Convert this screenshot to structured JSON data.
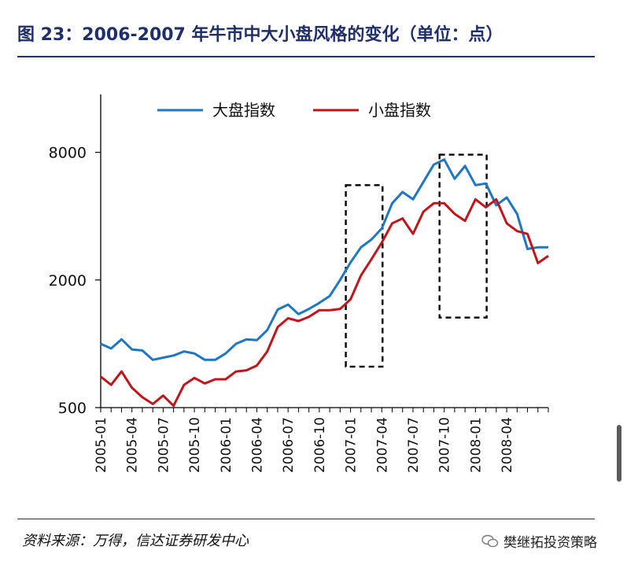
{
  "title": "图 23：2006-2007 年牛市中大小盘风格的变化（单位：点）",
  "source": "资料来源：万得，信达证券研发中心",
  "watermark": "樊继拓投资策略",
  "colors": {
    "large": "#1f77c4",
    "small": "#c0161b",
    "title": "#1f2f6b"
  },
  "chart_data": {
    "type": "line",
    "y_scale": "log",
    "ylim": [
      500,
      15000
    ],
    "yticks": [
      "500",
      "2000",
      "8000"
    ],
    "ytick_values": [
      500,
      2000,
      8000
    ],
    "x": [
      "2005-01",
      "2005-02",
      "2005-03",
      "2005-04",
      "2005-05",
      "2005-06",
      "2005-07",
      "2005-08",
      "2005-09",
      "2005-10",
      "2005-11",
      "2005-12",
      "2006-01",
      "2006-02",
      "2006-03",
      "2006-04",
      "2006-05",
      "2006-06",
      "2006-07",
      "2006-08",
      "2006-09",
      "2006-10",
      "2006-11",
      "2006-12",
      "2007-01",
      "2007-02",
      "2007-03",
      "2007-04",
      "2007-05",
      "2007-06",
      "2007-07",
      "2007-08",
      "2007-09",
      "2007-10",
      "2007-11",
      "2007-12",
      "2008-01",
      "2008-02",
      "2008-03",
      "2008-04",
      "2008-05",
      "2008-06",
      "2008-07",
      "2008-08"
    ],
    "xtick_labels": [
      "2005-01",
      "2005-04",
      "2005-07",
      "2005-10",
      "2006-01",
      "2006-04",
      "2006-07",
      "2006-10",
      "2007-01",
      "2007-04",
      "2007-07",
      "2007-10",
      "2008-01",
      "2008-04"
    ],
    "legend_position": "top",
    "series": [
      {
        "name": "大盘指数",
        "color": "#1f77c4",
        "values": [
          1000,
          950,
          1050,
          940,
          930,
          840,
          860,
          880,
          920,
          900,
          840,
          840,
          900,
          1000,
          1050,
          1040,
          1160,
          1450,
          1530,
          1380,
          1460,
          1560,
          1680,
          2000,
          2420,
          2850,
          3100,
          3500,
          4600,
          5200,
          4800,
          5800,
          7000,
          7400,
          6000,
          6900,
          5600,
          5700,
          4500,
          4900,
          4100,
          2800,
          2850,
          2850
        ]
      },
      {
        "name": "小盘指数",
        "color": "#c0161b",
        "values": [
          700,
          640,
          740,
          620,
          560,
          520,
          570,
          510,
          640,
          690,
          650,
          680,
          680,
          740,
          750,
          790,
          920,
          1200,
          1320,
          1280,
          1340,
          1440,
          1440,
          1460,
          1620,
          2100,
          2500,
          3000,
          3700,
          3900,
          3300,
          4200,
          4600,
          4600,
          4100,
          3800,
          4800,
          4400,
          4800,
          3700,
          3400,
          3300,
          2400,
          2600
        ]
      }
    ]
  }
}
